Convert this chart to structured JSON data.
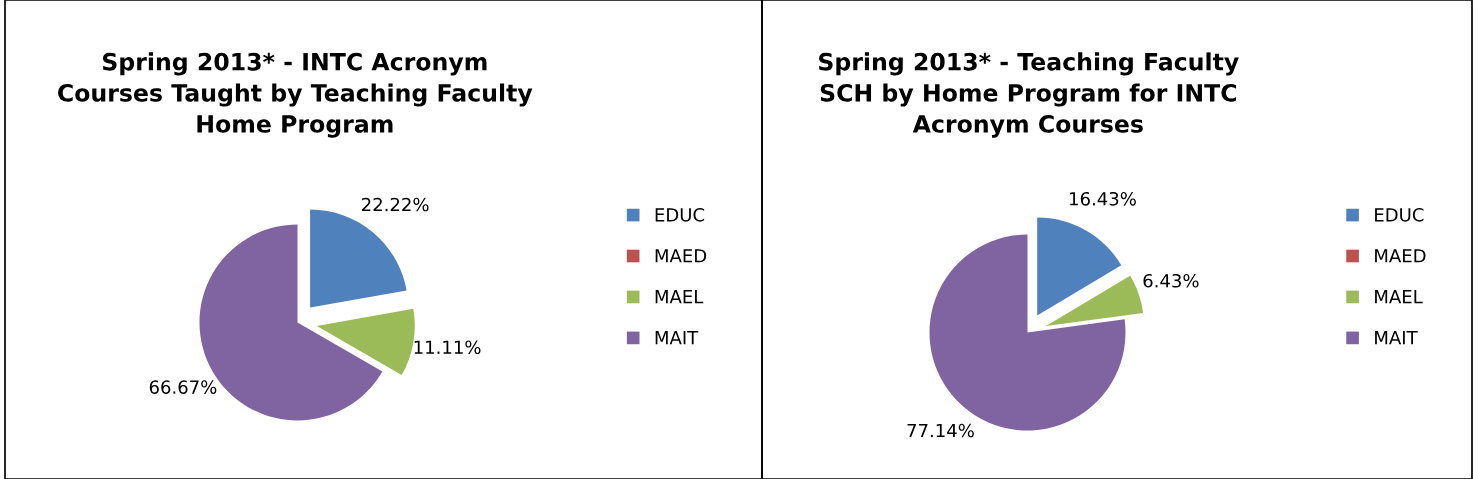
{
  "chart_data": [
    {
      "type": "pie",
      "title": "Spring 2013* - INTC Acronym\nCourses Taught by Teaching Faculty\nHome Program",
      "categories": [
        "EDUC",
        "MAED",
        "MAEL",
        "MAIT"
      ],
      "values": [
        22.22,
        0,
        11.11,
        66.67
      ],
      "colors": [
        "#4f81bd",
        "#c0504d",
        "#9bbb59",
        "#8064a2"
      ],
      "value_labels": [
        "22.22%",
        null,
        "11.11%",
        "66.67%"
      ],
      "legend": "right"
    },
    {
      "type": "pie",
      "title": "Spring 2013* - Teaching Faculty\nSCH by Home Program for INTC\nAcronym Courses",
      "categories": [
        "EDUC",
        "MAED",
        "MAEL",
        "MAIT"
      ],
      "values": [
        16.43,
        0,
        6.43,
        77.14
      ],
      "colors": [
        "#4f81bd",
        "#c0504d",
        "#9bbb59",
        "#8064a2"
      ],
      "value_labels": [
        "16.43%",
        null,
        "6.43%",
        "77.14%"
      ],
      "legend": "right"
    }
  ]
}
